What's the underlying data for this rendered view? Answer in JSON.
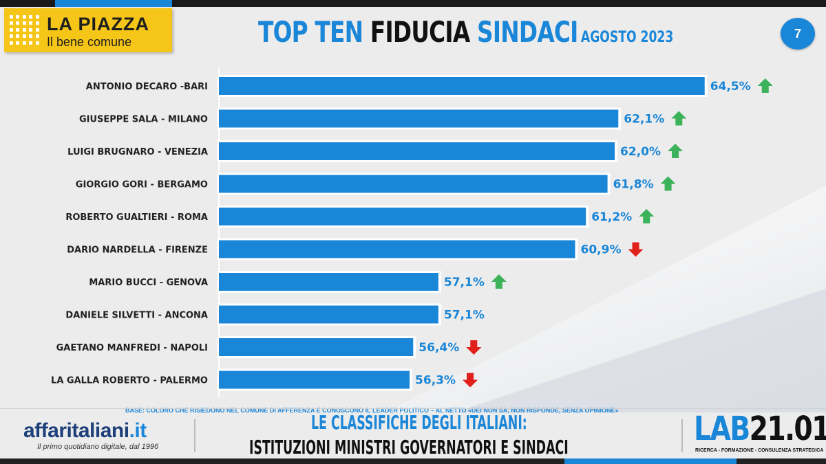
{
  "logo": {
    "title": "LA PIAZZA",
    "subtitle": "Il bene comune"
  },
  "header": {
    "title_part1": "TOP TEN ",
    "title_part2": "FIDUCIA ",
    "title_part3": "SINDACI",
    "title_date": "AGOSTO 2023",
    "page_number": "7"
  },
  "colors": {
    "accent": "#1a86d8",
    "bar": "#1a86d8",
    "up": "#3cb35a",
    "down": "#e0201a",
    "logo_yellow": "#f5c518"
  },
  "chart_data": {
    "type": "bar",
    "orientation": "horizontal",
    "title": "TOP TEN FIDUCIA SINDACI AGOSTO 2023",
    "categories": [
      "ANTONIO DECARO -BARI",
      "GIUSEPPE SALA - MILANO",
      "LUIGI BRUGNARO - VENEZIA",
      "GIORGIO GORI - BERGAMO",
      "ROBERTO GUALTIERI - ROMA",
      "DARIO NARDELLA - FIRENZE",
      "MARIO BUCCI - GENOVA",
      "DANIELE SILVETTI - ANCONA",
      "GAETANO MANFREDI - NAPOLI",
      "LA GALLA ROBERTO - PALERMO"
    ],
    "values": [
      64.5,
      62.1,
      62.0,
      61.8,
      61.2,
      60.9,
      57.1,
      57.1,
      56.4,
      56.3
    ],
    "value_labels": [
      "64,5%",
      "62,1%",
      "62,0%",
      "61,8%",
      "61,2%",
      "60,9%",
      "57,1%",
      "57,1%",
      "56,4%",
      "56,3%"
    ],
    "trend": [
      "up",
      "up",
      "up",
      "up",
      "up",
      "down",
      "up",
      "none",
      "down",
      "down"
    ],
    "xlim": [
      51,
      65.5
    ],
    "grid": false,
    "legend": "none"
  },
  "base_note": "BASE: COLORO CHE RISIEDONO NEL COMUNE DI AFFERENZA E CONOSCONO IL LEADER POLITICO – AL NETTO «DEI NON SA, NON RISPONDE, SENZA OPINIONE»",
  "footer": {
    "aff_name": "affaritaliani",
    "aff_tld": ".it",
    "aff_tagline": "Il primo quotidiano digitale, dal 1996",
    "title_line1": "LE CLASSIFICHE DEGLI ITALIANI:",
    "title_line2": "ISTITUZIONI MINISTRI GOVERNATORI E SINDACI",
    "lab_part1": "LAB",
    "lab_part2": "21.01",
    "lab_tagline": "RICERCA - FORMAZIONE - CONSULENZA STRATEGICA"
  }
}
